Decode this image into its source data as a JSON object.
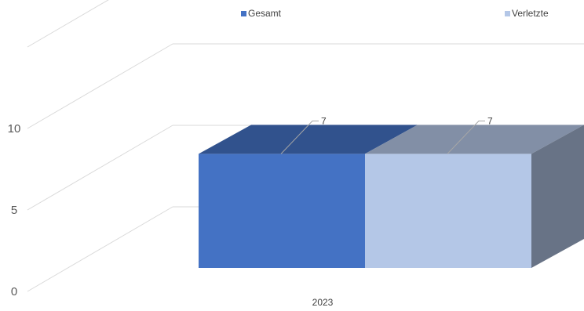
{
  "chart_data": {
    "type": "bar",
    "categories": [
      "2023"
    ],
    "series": [
      {
        "name": "Gesamt",
        "values": [
          7
        ],
        "color": "#4472C4"
      },
      {
        "name": "Verletzte",
        "values": [
          7
        ],
        "color": "#B4C7E7"
      }
    ],
    "ylim": [
      0,
      15
    ],
    "y_ticks": [
      "0",
      "5",
      "10"
    ],
    "data_labels": [
      "7",
      "7"
    ],
    "legend_position": "top",
    "grid": true,
    "style": "3d"
  }
}
